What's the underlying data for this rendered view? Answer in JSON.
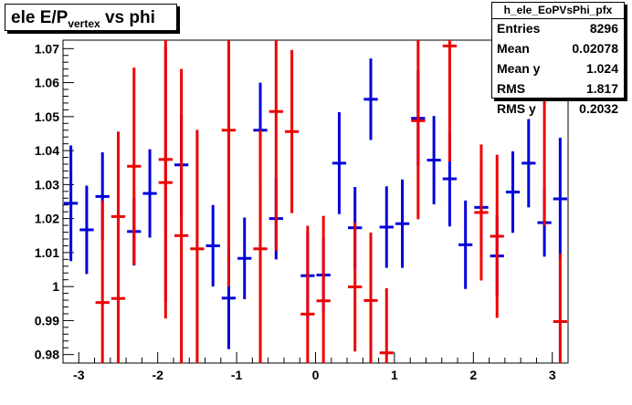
{
  "title": {
    "main": "ele E/P",
    "sub": "vertex",
    "rest": " vs phi"
  },
  "stats": {
    "name": "h_ele_EoPVsPhi_pfx",
    "rows": [
      {
        "label": "Entries",
        "value": "8296"
      },
      {
        "label": "Mean",
        "value": "0.02078"
      },
      {
        "label": "Mean y",
        "value": "1.024"
      },
      {
        "label": "RMS",
        "value": "1.817"
      },
      {
        "label": "RMS y",
        "value": "0.2032"
      }
    ]
  },
  "colors": {
    "blue": "#0000dd",
    "red": "#ee0000",
    "axis": "#000000"
  },
  "chart_data": {
    "type": "scatter",
    "title": "ele E/Pvertex vs phi",
    "xlim": [
      -3.2,
      3.2
    ],
    "ylim": [
      0.9775,
      1.0725
    ],
    "xticks": [
      "-3",
      "-2",
      "-1",
      "0",
      "1",
      "2",
      "3"
    ],
    "yticks": [
      "0.98",
      "0.99",
      "1",
      "1.01",
      "1.02",
      "1.03",
      "1.04",
      "1.05",
      "1.06",
      "1.07"
    ],
    "xbin_halfwidth": 0.1,
    "series": [
      {
        "color": "blue",
        "points": [
          {
            "x": -3.1,
            "y": 1.0245,
            "err": 0.017
          },
          {
            "x": -2.9,
            "y": 1.0167,
            "err": 0.013
          },
          {
            "x": -2.7,
            "y": 1.0265,
            "err": 0.013
          },
          {
            "x": -2.3,
            "y": 1.0162,
            "err": 0.01
          },
          {
            "x": -2.1,
            "y": 1.0274,
            "err": 0.013
          },
          {
            "x": -1.7,
            "y": 1.0358,
            "err": 0.015
          },
          {
            "x": -1.3,
            "y": 1.012,
            "err": 0.012
          },
          {
            "x": -1.1,
            "y": 0.9966,
            "err": 0.015
          },
          {
            "x": -0.9,
            "y": 1.0083,
            "err": 0.012
          },
          {
            "x": -0.7,
            "y": 1.046,
            "err": 0.014
          },
          {
            "x": -0.5,
            "y": 1.02,
            "err": 0.012
          },
          {
            "x": -0.1,
            "y": 1.0032,
            "err": 0.013
          },
          {
            "x": 0.1,
            "y": 1.0034,
            "err": 0.011
          },
          {
            "x": 0.3,
            "y": 1.0363,
            "err": 0.015
          },
          {
            "x": 0.5,
            "y": 1.0173,
            "err": 0.012
          },
          {
            "x": 0.7,
            "y": 1.0551,
            "err": 0.012
          },
          {
            "x": 0.9,
            "y": 1.0175,
            "err": 0.012
          },
          {
            "x": 1.1,
            "y": 1.0185,
            "err": 0.013
          },
          {
            "x": 1.3,
            "y": 1.0495,
            "err": 0.014
          },
          {
            "x": 1.5,
            "y": 1.0372,
            "err": 0.013
          },
          {
            "x": 1.7,
            "y": 1.0317,
            "err": 0.014
          },
          {
            "x": 1.9,
            "y": 1.0123,
            "err": 0.013
          },
          {
            "x": 2.1,
            "y": 1.0233,
            "err": 0.013
          },
          {
            "x": 2.3,
            "y": 1.009,
            "err": 0.012
          },
          {
            "x": 2.5,
            "y": 1.0278,
            "err": 0.012
          },
          {
            "x": 2.7,
            "y": 1.0363,
            "err": 0.013
          },
          {
            "x": 2.9,
            "y": 1.0188,
            "err": 0.01
          },
          {
            "x": 3.1,
            "y": 1.0258,
            "err": 0.018
          }
        ]
      },
      {
        "color": "red",
        "points": [
          {
            "x": -2.7,
            "y": 0.9953,
            "err": 0.03
          },
          {
            "x": -2.5,
            "y": 1.0206,
            "err": 0.025
          },
          {
            "x": -2.5,
            "y": 0.9965,
            "err": 0.03
          },
          {
            "x": -2.3,
            "y": 1.0354,
            "err": 0.029
          },
          {
            "x": -1.9,
            "y": 1.0374,
            "err": 0.042
          },
          {
            "x": -1.9,
            "y": 1.0306,
            "err": 0.04
          },
          {
            "x": -1.7,
            "y": 1.015,
            "err": 0.049
          },
          {
            "x": -1.5,
            "y": 1.0111,
            "err": 0.035
          },
          {
            "x": -1.1,
            "y": 1.046,
            "err": 0.046
          },
          {
            "x": -0.7,
            "y": 1.0111,
            "err": 0.035
          },
          {
            "x": -0.5,
            "y": 1.0515,
            "err": 0.041
          },
          {
            "x": -0.3,
            "y": 1.0456,
            "err": 0.024
          },
          {
            "x": -0.1,
            "y": 0.9919,
            "err": 0.026
          },
          {
            "x": 0.1,
            "y": 0.9958,
            "err": 0.025
          },
          {
            "x": 0.5,
            "y": 0.9999,
            "err": 0.019
          },
          {
            "x": 0.7,
            "y": 0.9959,
            "err": 0.02
          },
          {
            "x": 0.9,
            "y": 0.9805,
            "err": 0.019
          },
          {
            "x": 1.3,
            "y": 1.0488,
            "err": 0.029
          },
          {
            "x": 1.7,
            "y": 1.0708,
            "err": 0.034
          },
          {
            "x": 2.1,
            "y": 1.0218,
            "err": 0.02
          },
          {
            "x": 2.3,
            "y": 1.0148,
            "err": 0.024
          },
          {
            "x": 2.9,
            "y": 1.061,
            "err": 0.043
          },
          {
            "x": 3.1,
            "y": 0.9897,
            "err": 0.02
          }
        ]
      }
    ]
  }
}
